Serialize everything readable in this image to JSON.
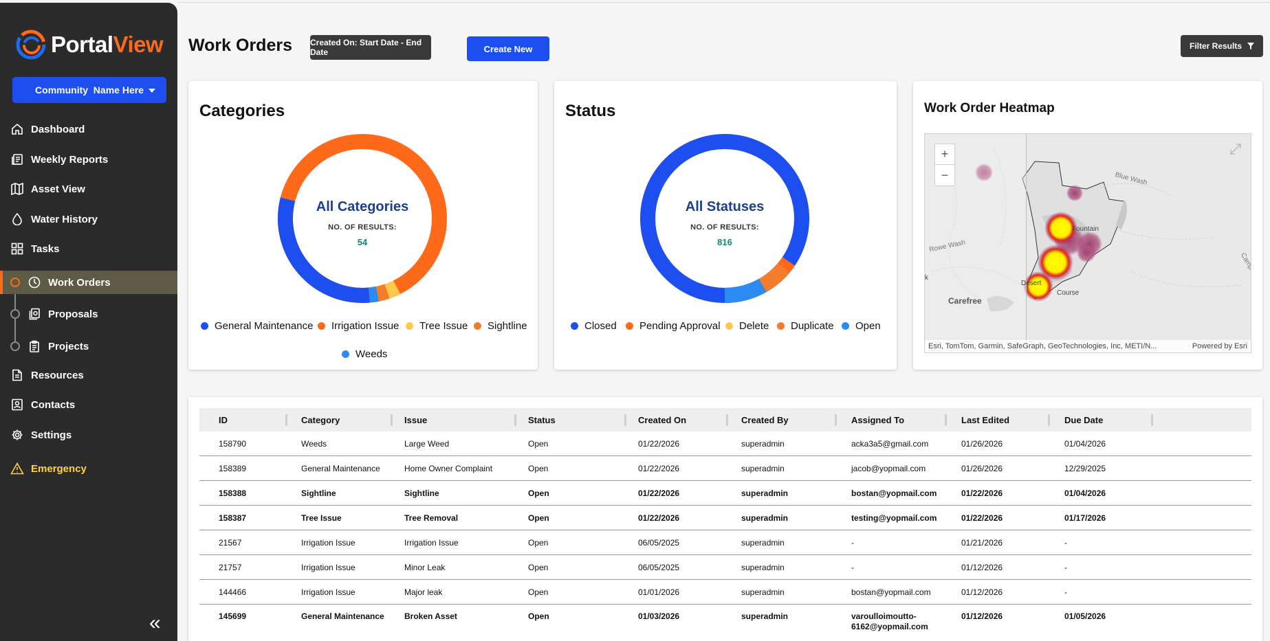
{
  "brand": {
    "part1": "Portal",
    "part2": "View",
    "accent": "#ff6a1a",
    "blue": "#1d4ff0"
  },
  "community": {
    "label": "Community  Name Here"
  },
  "nav": [
    {
      "label": "Dashboard",
      "icon": "home-icon"
    },
    {
      "label": "Weekly Reports",
      "icon": "report-icon"
    },
    {
      "label": "Asset View",
      "icon": "map-icon"
    },
    {
      "label": "Water History",
      "icon": "droplet-icon"
    },
    {
      "label": "Tasks",
      "icon": "grid-icon"
    },
    {
      "label": "Work Orders",
      "icon": "clock-icon"
    },
    {
      "label": "Proposals",
      "icon": "document-icon"
    },
    {
      "label": "Projects",
      "icon": "clipboard-icon"
    },
    {
      "label": "Resources",
      "icon": "file-icon"
    },
    {
      "label": "Contacts",
      "icon": "contact-icon"
    },
    {
      "label": "Settings",
      "icon": "gear-icon"
    },
    {
      "label": "Emergency",
      "icon": "warning-icon"
    }
  ],
  "header": {
    "title": "Work Orders",
    "date_button": "Created On: Start Date - End Date",
    "create_button": "Create New",
    "filter_button": "Filter Results"
  },
  "categories": {
    "title": "Categories",
    "center_title": "All Categories",
    "results_label": "NO. OF RESULTS:",
    "results_count": "54",
    "legend": [
      {
        "label": "General Maintenance",
        "color": "#1d4ff0"
      },
      {
        "label": "Irrigation Issue",
        "color": "#ff6a1a"
      },
      {
        "label": "Tree Issue",
        "color": "#ffc94d"
      },
      {
        "label": "Sightline",
        "color": "#f57c2b"
      },
      {
        "label": "Weeds",
        "color": "#2a8cf2"
      }
    ]
  },
  "status": {
    "title": "Status",
    "center_title": "All Statuses",
    "results_label": "NO. OF RESULTS:",
    "results_count": "816",
    "legend": [
      {
        "label": "Closed",
        "color": "#1d4ff0"
      },
      {
        "label": "Pending Approval",
        "color": "#ff6a1a"
      },
      {
        "label": "Delete",
        "color": "#ffc94d"
      },
      {
        "label": "Duplicate",
        "color": "#f57c2b"
      },
      {
        "label": "Open",
        "color": "#2a8cf2"
      }
    ]
  },
  "heatmap": {
    "title": "Work Order Heatmap",
    "zoom_in": "+",
    "zoom_out": "−",
    "labels": [
      "Rowe Wash",
      "Carefree",
      "Blue Wash",
      "Fountain",
      "Camp",
      "Desert",
      "Course",
      "k"
    ],
    "attribution": "Esri, TomTom, Garmin, SafeGraph, GeoTechnologies, Inc, METI/N...",
    "powered_by": "Powered by Esri"
  },
  "table": {
    "headers": [
      "ID",
      "Category",
      "Issue",
      "Status",
      "Created On",
      "Created By",
      "Assigned To",
      "Last Edited",
      "Due Date"
    ],
    "rows": [
      {
        "bold": false,
        "cells": [
          "158790",
          "Weeds",
          "Large Weed",
          "Open",
          "01/22/2026",
          "superadmin",
          "acka3a5@gmail.com",
          "01/26/2026",
          "01/04/2026"
        ]
      },
      {
        "bold": false,
        "cells": [
          "158389",
          "General Maintenance",
          "Home Owner Complaint",
          "Open",
          "01/22/2026",
          "superadmin",
          "jacob@yopmail.com",
          "01/26/2026",
          "12/29/2025"
        ]
      },
      {
        "bold": true,
        "cells": [
          "158388",
          "Sightline",
          "Sightline",
          "Open",
          "01/22/2026",
          "superadmin",
          "bostan@yopmail.com",
          "01/22/2026",
          "01/04/2026"
        ]
      },
      {
        "bold": true,
        "cells": [
          "158387",
          "Tree Issue",
          "Tree Removal",
          "Open",
          "01/22/2026",
          "superadmin",
          "testing@yopmail.com",
          "01/22/2026",
          "01/17/2026"
        ]
      },
      {
        "bold": false,
        "cells": [
          "21567",
          "Irrigation Issue",
          "Irrigation Issue",
          "Open",
          "06/05/2025",
          "superadmin",
          "-",
          "01/21/2026",
          "-"
        ]
      },
      {
        "bold": false,
        "cells": [
          "21757",
          "Irrigation Issue",
          "Minor Leak",
          "Open",
          "06/05/2025",
          "superadmin",
          "-",
          "01/12/2026",
          "-"
        ]
      },
      {
        "bold": false,
        "cells": [
          "144466",
          "Irrigation Issue",
          "Major leak",
          "Open",
          "01/01/2026",
          "superadmin",
          "bostan@yopmail.com",
          "01/12/2026",
          "-"
        ]
      },
      {
        "bold": true,
        "cells": [
          "145699",
          "General Maintenance",
          "Broken Asset",
          "Open",
          "01/03/2026",
          "superadmin",
          "varoulloimoutto-6162@yopmail.com",
          "01/12/2026",
          "01/05/2026"
        ]
      }
    ]
  }
}
